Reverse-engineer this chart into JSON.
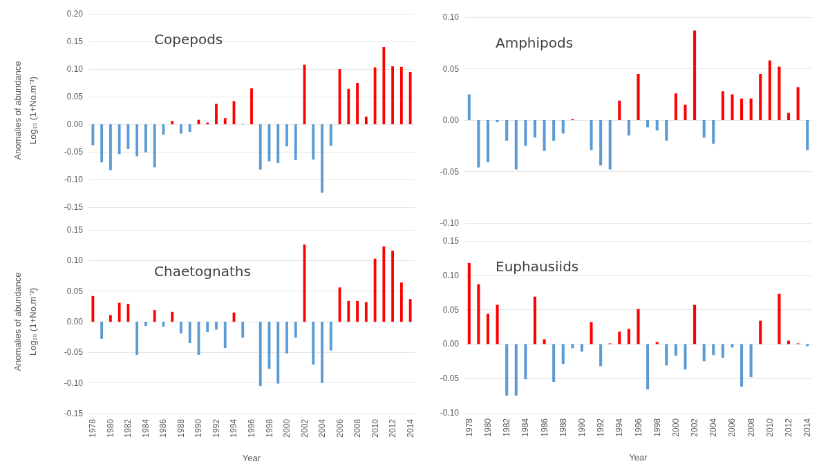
{
  "chart_data": [
    {
      "type": "bar",
      "title": "Copepods",
      "ylabel": "Anomalies of abundance\nLog₁₀ (1+No.m⁻³)",
      "tick_labels": "y",
      "grid": "y",
      "categories": [
        "1978",
        null,
        "1980",
        null,
        "1982",
        null,
        "1984",
        null,
        "1986",
        null,
        "1988",
        null,
        "1990",
        null,
        "1992",
        null,
        "1994",
        null,
        "1996",
        null,
        "1998",
        null,
        "2000",
        null,
        "2002",
        null,
        "2004",
        null,
        "2006",
        null,
        "2008",
        null,
        "2010",
        null,
        "2012",
        null,
        "2014"
      ],
      "values": [
        -0.038,
        -0.069,
        -0.083,
        -0.054,
        -0.045,
        -0.058,
        -0.051,
        -0.078,
        -0.019,
        0.006,
        -0.017,
        -0.014,
        0.008,
        0.003,
        0.037,
        0.011,
        0.042,
        0.001,
        0.065,
        -0.082,
        -0.067,
        -0.07,
        -0.04,
        -0.065,
        0.108,
        -0.064,
        -0.124,
        -0.039,
        0.1,
        0.064,
        0.075,
        0.014,
        0.103,
        0.14,
        0.105,
        0.104,
        0.095
      ],
      "colors": [
        "#5b9bd5",
        "#5b9bd5",
        "#5b9bd5",
        "#5b9bd5",
        "#5b9bd5",
        "#5b9bd5",
        "#5b9bd5",
        "#5b9bd5",
        "#5b9bd5",
        "#ff0000",
        "#5b9bd5",
        "#5b9bd5",
        "#ff0000",
        "#ff0000",
        "#ff0000",
        "#ff0000",
        "#ff0000",
        "#5b9bd5",
        "#ff0000",
        "#5b9bd5",
        "#5b9bd5",
        "#5b9bd5",
        "#5b9bd5",
        "#5b9bd5",
        "#ff0000",
        "#5b9bd5",
        "#5b9bd5",
        "#5b9bd5",
        "#ff0000",
        "#ff0000",
        "#ff0000",
        "#ff0000",
        "#ff0000",
        "#ff0000",
        "#ff0000",
        "#ff0000",
        "#ff0000"
      ],
      "ylim": [
        -0.15,
        0.2
      ],
      "yticks": [
        {
          "value": -0.15,
          "label": "-0.15"
        },
        {
          "value": -0.1,
          "label": "-0.10"
        },
        {
          "value": -0.05,
          "label": "-0.05"
        },
        {
          "value": 0,
          "label": "0.00"
        },
        {
          "value": 0.05,
          "label": "0.05"
        },
        {
          "value": 0.1,
          "label": "0.10"
        },
        {
          "value": 0.15,
          "label": "0.15"
        },
        {
          "value": 0.2,
          "label": "0.20"
        }
      ]
    },
    {
      "type": "bar",
      "title": "Amphipods",
      "tick_labels": "y",
      "grid": "y",
      "categories": [
        "1978",
        null,
        "1980",
        null,
        "1982",
        null,
        "1984",
        null,
        "1986",
        null,
        "1988",
        null,
        "1990",
        null,
        "1992",
        null,
        "1994",
        null,
        "1996",
        null,
        "1998",
        null,
        "2000",
        null,
        "2002",
        null,
        "2004",
        null,
        "2006",
        null,
        "2008",
        null,
        "2010",
        null,
        "2012",
        null,
        "2014"
      ],
      "values": [
        0.025,
        -0.046,
        -0.041,
        -0.002,
        -0.02,
        -0.048,
        -0.025,
        -0.017,
        -0.03,
        -0.02,
        -0.013,
        0.001,
        0,
        -0.029,
        -0.044,
        -0.048,
        0.019,
        -0.015,
        0.045,
        -0.007,
        -0.01,
        -0.02,
        0.026,
        0.015,
        0.087,
        -0.017,
        -0.023,
        0.028,
        0.025,
        0.021,
        0.021,
        0.045,
        0.058,
        0.052,
        0.007,
        0.032,
        -0.029
      ],
      "colors": [
        "#5b9bd5",
        "#5b9bd5",
        "#5b9bd5",
        "#5b9bd5",
        "#5b9bd5",
        "#5b9bd5",
        "#5b9bd5",
        "#5b9bd5",
        "#5b9bd5",
        "#5b9bd5",
        "#5b9bd5",
        "#ff0000",
        "#5b9bd5",
        "#5b9bd5",
        "#5b9bd5",
        "#5b9bd5",
        "#ff0000",
        "#5b9bd5",
        "#ff0000",
        "#5b9bd5",
        "#5b9bd5",
        "#5b9bd5",
        "#ff0000",
        "#ff0000",
        "#ff0000",
        "#5b9bd5",
        "#5b9bd5",
        "#ff0000",
        "#ff0000",
        "#ff0000",
        "#ff0000",
        "#ff0000",
        "#ff0000",
        "#ff0000",
        "#ff0000",
        "#ff0000",
        "#5b9bd5"
      ],
      "ylim": [
        -0.1,
        0.1
      ],
      "yticks": [
        {
          "value": -0.1,
          "label": "-0.10"
        },
        {
          "value": -0.05,
          "label": "-0.05"
        },
        {
          "value": 0,
          "label": "0.00"
        },
        {
          "value": 0.05,
          "label": "0.05"
        },
        {
          "value": 0.1,
          "label": "0.10"
        }
      ]
    },
    {
      "type": "bar",
      "title": "Chaetognaths",
      "ylabel": "Anomalies of abundance\nLog₁₀ (1+No.m⁻³)",
      "xlabel": "Year",
      "grid": "y",
      "categories": [
        "1978",
        null,
        "1980",
        null,
        "1982",
        null,
        "1984",
        null,
        "1986",
        null,
        "1988",
        null,
        "1990",
        null,
        "1992",
        null,
        "1994",
        null,
        "1996",
        null,
        "1998",
        null,
        "2000",
        null,
        "2002",
        null,
        "2004",
        null,
        "2006",
        null,
        "2008",
        null,
        "2010",
        null,
        "2012",
        null,
        "2014"
      ],
      "values": [
        0.042,
        -0.028,
        0.011,
        0.031,
        0.029,
        -0.054,
        -0.007,
        0.019,
        -0.008,
        0.016,
        -0.019,
        -0.035,
        -0.054,
        -0.017,
        -0.013,
        -0.043,
        0.015,
        -0.026,
        0,
        -0.105,
        -0.077,
        -0.101,
        -0.052,
        -0.026,
        0.126,
        -0.07,
        -0.1,
        -0.047,
        0.056,
        0.034,
        0.034,
        0.032,
        0.103,
        0.123,
        0.116,
        0.064,
        0.037
      ],
      "colors": [
        "#ff0000",
        "#5b9bd5",
        "#ff0000",
        "#ff0000",
        "#ff0000",
        "#5b9bd5",
        "#5b9bd5",
        "#ff0000",
        "#5b9bd5",
        "#ff0000",
        "#5b9bd5",
        "#5b9bd5",
        "#5b9bd5",
        "#5b9bd5",
        "#5b9bd5",
        "#5b9bd5",
        "#ff0000",
        "#5b9bd5",
        "#5b9bd5",
        "#5b9bd5",
        "#5b9bd5",
        "#5b9bd5",
        "#5b9bd5",
        "#5b9bd5",
        "#ff0000",
        "#5b9bd5",
        "#5b9bd5",
        "#5b9bd5",
        "#ff0000",
        "#ff0000",
        "#ff0000",
        "#ff0000",
        "#ff0000",
        "#ff0000",
        "#ff0000",
        "#ff0000",
        "#ff0000"
      ],
      "ylim": [
        -0.15,
        0.15
      ],
      "yticks": [
        {
          "value": -0.15,
          "label": "-0.15"
        },
        {
          "value": -0.1,
          "label": "-0.10"
        },
        {
          "value": -0.05,
          "label": "-0.05"
        },
        {
          "value": 0,
          "label": "0.00"
        },
        {
          "value": 0.05,
          "label": "0.05"
        },
        {
          "value": 0.1,
          "label": "0.10"
        },
        {
          "value": 0.15,
          "label": "0.15"
        }
      ]
    },
    {
      "type": "bar",
      "title": "Euphausiids",
      "xlabel": "Year",
      "grid": "y",
      "categories": [
        "1978",
        null,
        "1980",
        null,
        "1982",
        null,
        "1984",
        null,
        "1986",
        null,
        "1988",
        null,
        "1990",
        null,
        "1992",
        null,
        "1994",
        null,
        "1996",
        null,
        "1998",
        null,
        "2000",
        null,
        "2002",
        null,
        "2004",
        null,
        "2006",
        null,
        "2008",
        null,
        "2010",
        null,
        "2012",
        null,
        "2014"
      ],
      "values": [
        0.118,
        0.087,
        0.044,
        0.057,
        -0.075,
        -0.075,
        -0.051,
        0.069,
        0.007,
        -0.055,
        -0.029,
        -0.006,
        -0.011,
        0.032,
        -0.032,
        0.001,
        0.018,
        0.022,
        0.051,
        -0.066,
        0.003,
        -0.031,
        -0.017,
        -0.037,
        0.057,
        -0.025,
        -0.016,
        -0.02,
        -0.005,
        -0.062,
        -0.048,
        0.034,
        0,
        0.073,
        0.005,
        0.001,
        -0.003
      ],
      "colors": [
        "#ff0000",
        "#ff0000",
        "#ff0000",
        "#ff0000",
        "#5b9bd5",
        "#5b9bd5",
        "#5b9bd5",
        "#ff0000",
        "#ff0000",
        "#5b9bd5",
        "#5b9bd5",
        "#5b9bd5",
        "#5b9bd5",
        "#ff0000",
        "#5b9bd5",
        "#ff0000",
        "#ff0000",
        "#ff0000",
        "#ff0000",
        "#5b9bd5",
        "#ff0000",
        "#5b9bd5",
        "#5b9bd5",
        "#5b9bd5",
        "#ff0000",
        "#5b9bd5",
        "#5b9bd5",
        "#5b9bd5",
        "#5b9bd5",
        "#5b9bd5",
        "#5b9bd5",
        "#ff0000",
        "#5b9bd5",
        "#ff0000",
        "#ff0000",
        "#ff0000",
        "#5b9bd5"
      ],
      "ylim": [
        -0.1,
        0.15
      ],
      "yticks": [
        {
          "value": -0.1,
          "label": "-0.10"
        },
        {
          "value": -0.05,
          "label": "-0.05"
        },
        {
          "value": 0,
          "label": "0.00"
        },
        {
          "value": 0.05,
          "label": "0.05"
        },
        {
          "value": 0.1,
          "label": "0.10"
        },
        {
          "value": 0.15,
          "label": "0.15"
        }
      ]
    }
  ]
}
